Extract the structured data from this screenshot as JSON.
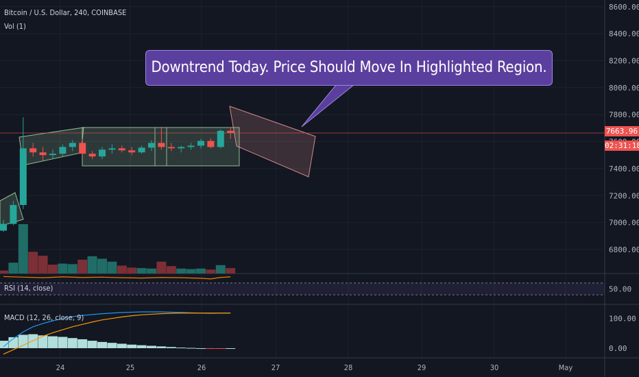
{
  "header": {
    "title": "Bitcoin / U.S. Dollar, 240, COINBASE",
    "volume_label": "Vol (1)"
  },
  "annotation": {
    "text": "Downtrend Today. Price Should Move In Highlighted Region."
  },
  "price_scale": {
    "current_price": "7663.96",
    "countdown": "02:31:18"
  },
  "colors": {
    "background": "#131722",
    "up": "#26a69a",
    "down": "#ef5350",
    "up_volume": "#1f6d66",
    "down_volume": "#7d2f36",
    "callout": "#5b3f9e",
    "highlight_green": "#a5d6a7",
    "highlight_red": "#ef9a9a",
    "rsi_line": "#f57c00",
    "macd_line": "#2196f3",
    "signal_line": "#ff9800",
    "histogram": "#b2dfdb"
  },
  "chart_data": [
    {
      "type": "candlestick",
      "title": "Bitcoin / U.S. Dollar, 240, COINBASE",
      "x_ticks": [
        "24",
        "25",
        "26",
        "27",
        "28",
        "29",
        "30",
        "May"
      ],
      "y_ticks": [
        "6800.00",
        "7000.00",
        "7200.00",
        "7400.00",
        "7600.00",
        "7800.00",
        "8000.00",
        "8200.00",
        "8400.00",
        "8600.00"
      ],
      "ylim": [
        6600,
        8620
      ],
      "candles": [
        {
          "t": 0,
          "o": 6940,
          "h": 7020,
          "l": 6930,
          "c": 6990
        },
        {
          "t": 1,
          "o": 6990,
          "h": 7160,
          "l": 6980,
          "c": 7130
        },
        {
          "t": 2,
          "o": 7130,
          "h": 7780,
          "l": 7100,
          "c": 7550
        },
        {
          "t": 3,
          "o": 7550,
          "h": 7590,
          "l": 7490,
          "c": 7520
        },
        {
          "t": 4,
          "o": 7520,
          "h": 7560,
          "l": 7460,
          "c": 7500
        },
        {
          "t": 5,
          "o": 7500,
          "h": 7540,
          "l": 7470,
          "c": 7510
        },
        {
          "t": 6,
          "o": 7510,
          "h": 7580,
          "l": 7490,
          "c": 7560
        },
        {
          "t": 7,
          "o": 7560,
          "h": 7610,
          "l": 7530,
          "c": 7590
        },
        {
          "t": 8,
          "o": 7590,
          "h": 7620,
          "l": 7500,
          "c": 7510
        },
        {
          "t": 9,
          "o": 7510,
          "h": 7530,
          "l": 7470,
          "c": 7490
        },
        {
          "t": 10,
          "o": 7490,
          "h": 7560,
          "l": 7470,
          "c": 7540
        },
        {
          "t": 11,
          "o": 7540,
          "h": 7580,
          "l": 7510,
          "c": 7550
        },
        {
          "t": 12,
          "o": 7550,
          "h": 7570,
          "l": 7520,
          "c": 7535
        },
        {
          "t": 13,
          "o": 7535,
          "h": 7560,
          "l": 7500,
          "c": 7520
        },
        {
          "t": 14,
          "o": 7520,
          "h": 7570,
          "l": 7510,
          "c": 7555
        },
        {
          "t": 15,
          "o": 7555,
          "h": 7610,
          "l": 7530,
          "c": 7590
        },
        {
          "t": 16,
          "o": 7590,
          "h": 7710,
          "l": 7540,
          "c": 7560
        },
        {
          "t": 17,
          "o": 7560,
          "h": 7590,
          "l": 7530,
          "c": 7550
        },
        {
          "t": 18,
          "o": 7550,
          "h": 7570,
          "l": 7520,
          "c": 7560
        },
        {
          "t": 19,
          "o": 7560,
          "h": 7590,
          "l": 7540,
          "c": 7570
        },
        {
          "t": 20,
          "o": 7570,
          "h": 7620,
          "l": 7550,
          "c": 7605
        },
        {
          "t": 21,
          "o": 7605,
          "h": 7625,
          "l": 7550,
          "c": 7560
        },
        {
          "t": 22,
          "o": 7560,
          "h": 7690,
          "l": 7550,
          "c": 7680
        },
        {
          "t": 23,
          "o": 7680,
          "h": 7700,
          "l": 7620,
          "c": 7664
        }
      ],
      "volume": [
        {
          "t": 0,
          "v": 6,
          "up": false
        },
        {
          "t": 1,
          "v": 22,
          "up": true
        },
        {
          "t": 2,
          "v": 100,
          "up": true
        },
        {
          "t": 3,
          "v": 44,
          "up": false
        },
        {
          "t": 4,
          "v": 36,
          "up": false
        },
        {
          "t": 5,
          "v": 18,
          "up": false
        },
        {
          "t": 6,
          "v": 20,
          "up": true
        },
        {
          "t": 7,
          "v": 19,
          "up": true
        },
        {
          "t": 8,
          "v": 28,
          "up": false
        },
        {
          "t": 9,
          "v": 35,
          "up": true
        },
        {
          "t": 10,
          "v": 30,
          "up": true
        },
        {
          "t": 11,
          "v": 24,
          "up": true
        },
        {
          "t": 12,
          "v": 16,
          "up": false
        },
        {
          "t": 13,
          "v": 12,
          "up": false
        },
        {
          "t": 14,
          "v": 11,
          "up": true
        },
        {
          "t": 15,
          "v": 10,
          "up": true
        },
        {
          "t": 16,
          "v": 24,
          "up": false
        },
        {
          "t": 17,
          "v": 15,
          "up": false
        },
        {
          "t": 18,
          "v": 10,
          "up": true
        },
        {
          "t": 19,
          "v": 9,
          "up": true
        },
        {
          "t": 20,
          "v": 10,
          "up": true
        },
        {
          "t": 21,
          "v": 8,
          "up": false
        },
        {
          "t": 22,
          "v": 17,
          "up": true
        },
        {
          "t": 23,
          "v": 11,
          "up": false
        }
      ]
    },
    {
      "type": "line",
      "title": "RSI (14, close)",
      "y_ticks": [
        "50.00"
      ],
      "band": [
        30,
        70
      ],
      "ylim": [
        0,
        100
      ],
      "x": [
        0,
        2,
        4,
        6,
        8,
        10,
        12,
        14,
        16,
        18,
        20,
        21,
        22,
        23
      ],
      "values": [
        92,
        90,
        88,
        91,
        89,
        90,
        88,
        87,
        89,
        88,
        86,
        84,
        89,
        91
      ]
    },
    {
      "type": "line",
      "title": "MACD (12, 26, close, 9)",
      "y_ticks": [
        "100.00",
        "0.00"
      ],
      "ylim": [
        -30,
        145
      ],
      "x": [
        0,
        1,
        2,
        3,
        4,
        5,
        6,
        7,
        8,
        9,
        10,
        11,
        12,
        13,
        14,
        15,
        16,
        17,
        18,
        19,
        20,
        21,
        22,
        23
      ],
      "series": [
        {
          "values": [
            5,
            32,
            55,
            72,
            83,
            92,
            100,
            106,
            110,
            113,
            116,
            118,
            120,
            121,
            122,
            122,
            122,
            121,
            120,
            119,
            118,
            117,
            118,
            118
          ]
        },
        {
          "values": [
            -20,
            -5,
            10,
            25,
            40,
            52,
            62,
            72,
            80,
            88,
            95,
            100,
            105,
            109,
            112,
            114,
            116,
            117,
            118,
            118,
            118,
            118,
            118,
            118
          ]
        }
      ],
      "histogram": [
        25,
        37,
        45,
        47,
        43,
        40,
        38,
        34,
        30,
        25,
        21,
        18,
        15,
        12,
        10,
        8,
        6,
        4,
        2,
        1,
        0,
        -2,
        -1,
        0
      ]
    }
  ]
}
